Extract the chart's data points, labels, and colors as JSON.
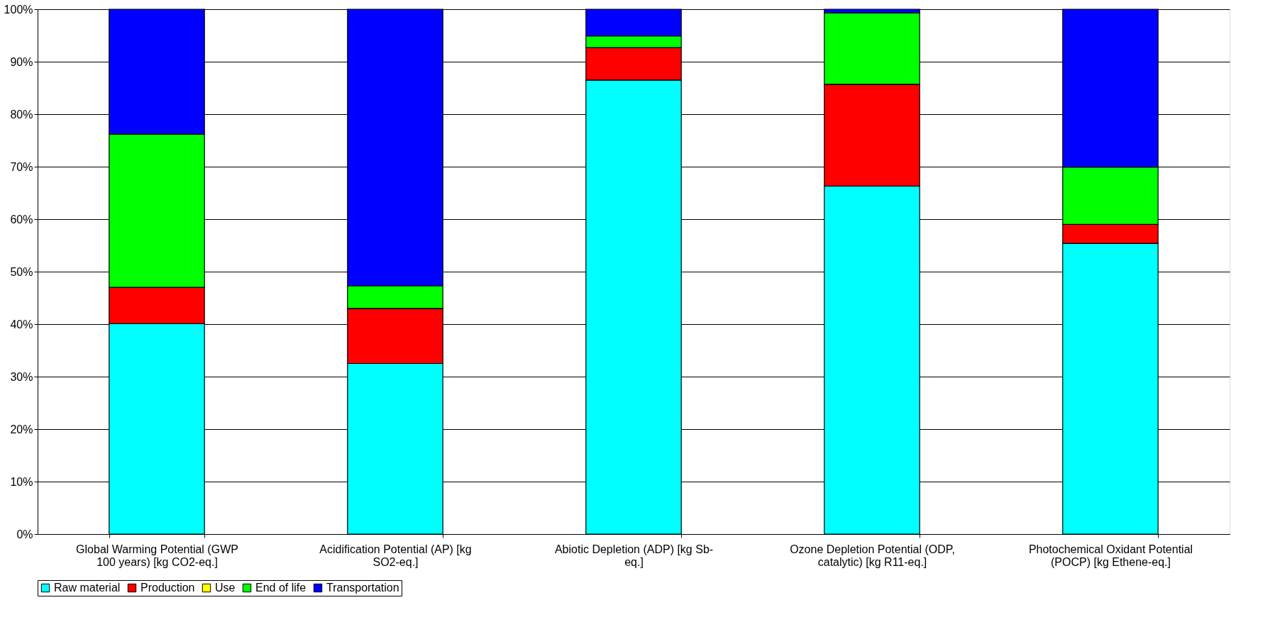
{
  "chart_data": {
    "type": "bar",
    "stacked": true,
    "categories": [
      "Global Warming Potential (GWP 100 years) [kg CO2-eq.]",
      "Acidification Potential (AP) [kg SO2-eq.]",
      "Abiotic Depletion (ADP) [kg Sb-eq.]",
      "Ozone Depletion Potential (ODP, catalytic) [kg R11-eq.]",
      "Photochemical Oxidant Potential (POCP) [kg Ethene-eq.]"
    ],
    "series": [
      {
        "name": "Raw material",
        "color": "#00ffff",
        "values": [
          40.1,
          32.5,
          86.5,
          66.3,
          55.4
        ]
      },
      {
        "name": "Production",
        "color": "#ff0000",
        "values": [
          6.9,
          10.5,
          6.2,
          19.4,
          3.6
        ]
      },
      {
        "name": "Use",
        "color": "#ffff00",
        "values": [
          0,
          0,
          0,
          0,
          0
        ]
      },
      {
        "name": "End of life",
        "color": "#00ff00",
        "values": [
          29.2,
          4.3,
          2.2,
          13.6,
          10.9
        ]
      },
      {
        "name": "Transportation",
        "color": "#0000ff",
        "values": [
          23.8,
          52.7,
          5.1,
          0.7,
          30.1
        ]
      }
    ],
    "ylim": [
      0,
      100
    ],
    "yticks": [
      {
        "value": 0,
        "label": "0%"
      },
      {
        "value": 10,
        "label": "10%"
      },
      {
        "value": 20,
        "label": "20%"
      },
      {
        "value": 30,
        "label": "30%"
      },
      {
        "value": 40,
        "label": "40%"
      },
      {
        "value": 50,
        "label": "50%"
      },
      {
        "value": 60,
        "label": "60%"
      },
      {
        "value": 70,
        "label": "70%"
      },
      {
        "value": 80,
        "label": "80%"
      },
      {
        "value": 90,
        "label": "90%"
      },
      {
        "value": 100,
        "label": "100%"
      }
    ],
    "grid": "y",
    "legend": "bottom"
  }
}
